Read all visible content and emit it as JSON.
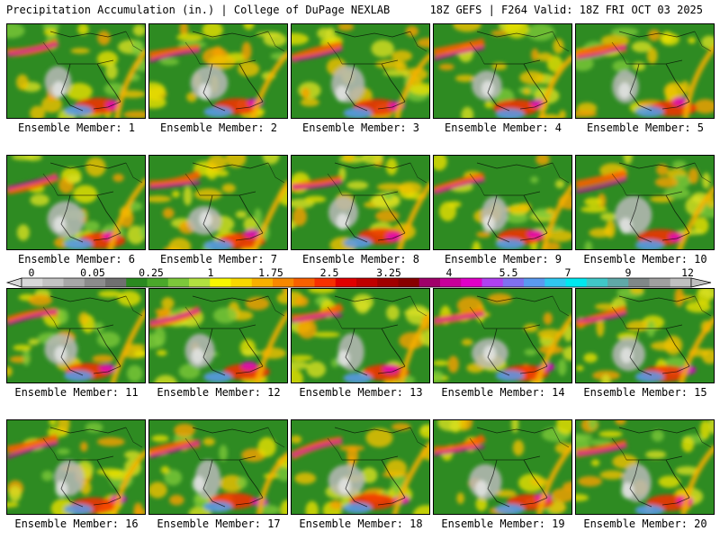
{
  "header": {
    "title_left": "Precipitation Accumulation (in.) | College of DuPage NEXLAB",
    "title_right": "18Z GEFS | F264 Valid: 18Z FRI OCT 03 2025"
  },
  "panels": [
    {
      "label": "Ensemble Member: 1"
    },
    {
      "label": "Ensemble Member: 2"
    },
    {
      "label": "Ensemble Member: 3"
    },
    {
      "label": "Ensemble Member: 4"
    },
    {
      "label": "Ensemble Member: 5"
    },
    {
      "label": "Ensemble Member: 6"
    },
    {
      "label": "Ensemble Member: 7"
    },
    {
      "label": "Ensemble Member: 8"
    },
    {
      "label": "Ensemble Member: 9"
    },
    {
      "label": "Ensemble Member: 10"
    },
    {
      "label": "Ensemble Member: 11"
    },
    {
      "label": "Ensemble Member: 12"
    },
    {
      "label": "Ensemble Member: 13"
    },
    {
      "label": "Ensemble Member: 14"
    },
    {
      "label": "Ensemble Member: 15"
    },
    {
      "label": "Ensemble Member: 16"
    },
    {
      "label": "Ensemble Member: 17"
    },
    {
      "label": "Ensemble Member: 18"
    },
    {
      "label": "Ensemble Member: 19"
    },
    {
      "label": "Ensemble Member: 20"
    }
  ],
  "colorbar": {
    "tick_labels": [
      "0",
      "0.05",
      "0.25",
      "1",
      "1.75",
      "2.5",
      "3.25",
      "4",
      "5.5",
      "7",
      "9",
      "12"
    ],
    "colors": [
      "#d9d9d9",
      "#c4c4c4",
      "#a8a8a8",
      "#8c8c8c",
      "#707070",
      "#2a8a20",
      "#4aa82a",
      "#7cc83a",
      "#b2e040",
      "#f8f800",
      "#f8d800",
      "#f8b000",
      "#f88800",
      "#f86000",
      "#f83000",
      "#e00000",
      "#c00000",
      "#a00000",
      "#880000",
      "#a0006a",
      "#c8009a",
      "#e000c8",
      "#b040f0",
      "#8070f0",
      "#5a9af0",
      "#30c8f0",
      "#00e8f0",
      "#40c8c8",
      "#60a8a8",
      "#808888",
      "#a0a0a0",
      "#c0c0c0"
    ]
  }
}
